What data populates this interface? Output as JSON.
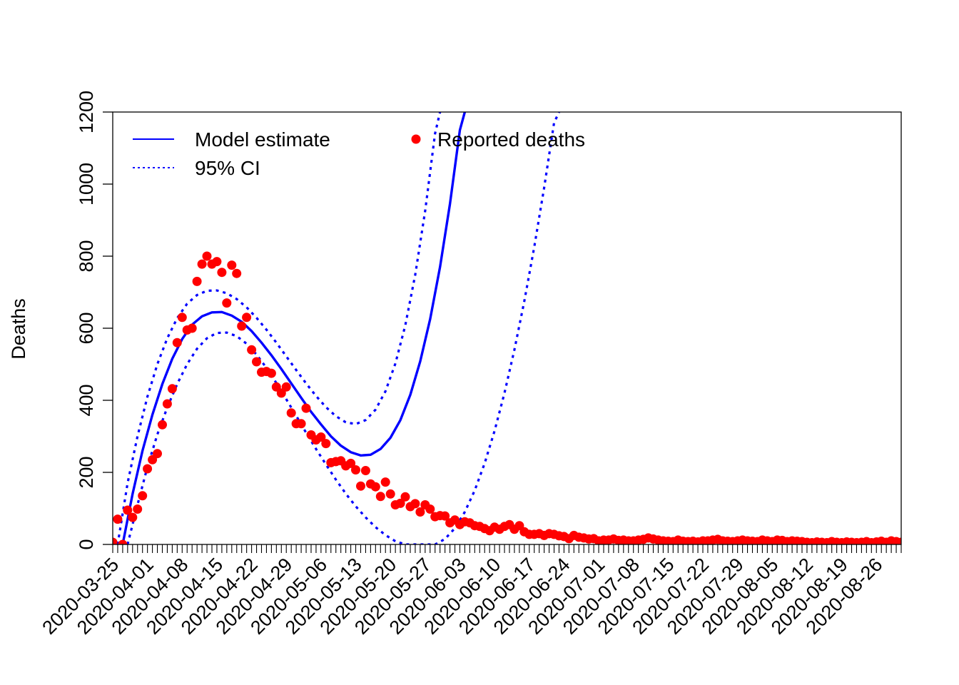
{
  "chart_data": {
    "type": "line",
    "title": "",
    "xlabel": "",
    "ylabel": "Deaths",
    "ylim": [
      0,
      1200
    ],
    "y_ticks": [
      0,
      200,
      400,
      600,
      800,
      1000,
      1200
    ],
    "x_tick_labels": [
      "2020-03-25",
      "2020-04-01",
      "2020-04-08",
      "2020-04-15",
      "2020-04-22",
      "2020-04-29",
      "2020-05-06",
      "2020-05-13",
      "2020-05-20",
      "2020-05-27",
      "2020-06-03",
      "2020-06-10",
      "2020-06-17",
      "2020-06-24",
      "2020-07-01",
      "2020-07-08",
      "2020-07-15",
      "2020-07-22",
      "2020-07-29",
      "2020-08-05",
      "2020-08-12",
      "2020-08-19",
      "2020-08-26"
    ],
    "x_range": [
      "2020-03-25",
      "2020-08-31"
    ],
    "grid": false,
    "legend": {
      "placement": "top-left",
      "entries": [
        {
          "label": "Model estimate",
          "style": "solid-line"
        },
        {
          "label": "95% CI",
          "style": "dotted-line"
        },
        {
          "label": "Reported deaths",
          "style": "point"
        }
      ]
    },
    "colors": {
      "model": "#0000ff",
      "points": "#ff0000"
    },
    "series": [
      {
        "name": "Reported deaths",
        "kind": "scatter",
        "x_start": "2020-03-25",
        "values": [
          6,
          70,
          0,
          95,
          75,
          98,
          135,
          210,
          235,
          252,
          332,
          390,
          432,
          560,
          630,
          595,
          600,
          730,
          778,
          800,
          778,
          785,
          755,
          670,
          775,
          752,
          606,
          630,
          540,
          507,
          478,
          480,
          475,
          437,
          420,
          437,
          365,
          335,
          335,
          378,
          304,
          290,
          298,
          280,
          227,
          230,
          232,
          218,
          225,
          207,
          162,
          205,
          168,
          160,
          133,
          173,
          140,
          110,
          114,
          132,
          105,
          113,
          90,
          110,
          98,
          77,
          80,
          79,
          60,
          68,
          55,
          63,
          60,
          52,
          50,
          44,
          38,
          48,
          42,
          50,
          55,
          42,
          52,
          35,
          28,
          28,
          30,
          25,
          30,
          28,
          24,
          22,
          16,
          25,
          20,
          18,
          15,
          16,
          10,
          12,
          12,
          15,
          11,
          12,
          10,
          10,
          12,
          14,
          18,
          15,
          12,
          10,
          9,
          8,
          12,
          9,
          8,
          9,
          7,
          10,
          10,
          12,
          14,
          10,
          9,
          8,
          10,
          12,
          10,
          9,
          8,
          12,
          10,
          8,
          12,
          11,
          8,
          10,
          9,
          8,
          6,
          5,
          7,
          6,
          5,
          8,
          6,
          5,
          7,
          6,
          5,
          6,
          8,
          5,
          7,
          9,
          6,
          10,
          8,
          6,
          5,
          7,
          6,
          5,
          4,
          6,
          5,
          8,
          7
        ]
      },
      {
        "name": "Model estimate",
        "kind": "line",
        "points": [
          {
            "x": "2020-03-27",
            "y": 0
          },
          {
            "x": "2020-03-29",
            "y": 140
          },
          {
            "x": "2020-03-31",
            "y": 260
          },
          {
            "x": "2020-04-02",
            "y": 360
          },
          {
            "x": "2020-04-04",
            "y": 445
          },
          {
            "x": "2020-04-06",
            "y": 515
          },
          {
            "x": "2020-04-08",
            "y": 570
          },
          {
            "x": "2020-04-10",
            "y": 610
          },
          {
            "x": "2020-04-12",
            "y": 633
          },
          {
            "x": "2020-04-14",
            "y": 644
          },
          {
            "x": "2020-04-16",
            "y": 645
          },
          {
            "x": "2020-04-18",
            "y": 635
          },
          {
            "x": "2020-04-20",
            "y": 618
          },
          {
            "x": "2020-04-22",
            "y": 592
          },
          {
            "x": "2020-04-24",
            "y": 560
          },
          {
            "x": "2020-04-26",
            "y": 525
          },
          {
            "x": "2020-04-28",
            "y": 487
          },
          {
            "x": "2020-04-30",
            "y": 447
          },
          {
            "x": "2020-05-02",
            "y": 407
          },
          {
            "x": "2020-05-04",
            "y": 368
          },
          {
            "x": "2020-05-06",
            "y": 333
          },
          {
            "x": "2020-05-08",
            "y": 300
          },
          {
            "x": "2020-05-10",
            "y": 274
          },
          {
            "x": "2020-05-12",
            "y": 256
          },
          {
            "x": "2020-05-14",
            "y": 247
          },
          {
            "x": "2020-05-16",
            "y": 249
          },
          {
            "x": "2020-05-18",
            "y": 265
          },
          {
            "x": "2020-05-20",
            "y": 296
          },
          {
            "x": "2020-05-22",
            "y": 345
          },
          {
            "x": "2020-05-24",
            "y": 415
          },
          {
            "x": "2020-05-26",
            "y": 508
          },
          {
            "x": "2020-05-28",
            "y": 625
          },
          {
            "x": "2020-05-30",
            "y": 770
          },
          {
            "x": "2020-06-01",
            "y": 945
          },
          {
            "x": "2020-06-03",
            "y": 1150
          },
          {
            "x": "2020-06-04",
            "y": 1200
          }
        ]
      },
      {
        "name": "95% CI",
        "kind": "line",
        "bound": "upper",
        "points": [
          {
            "x": "2020-03-26",
            "y": 0
          },
          {
            "x": "2020-03-28",
            "y": 170
          },
          {
            "x": "2020-03-30",
            "y": 300
          },
          {
            "x": "2020-04-01",
            "y": 410
          },
          {
            "x": "2020-04-03",
            "y": 500
          },
          {
            "x": "2020-04-05",
            "y": 572
          },
          {
            "x": "2020-04-07",
            "y": 628
          },
          {
            "x": "2020-04-09",
            "y": 668
          },
          {
            "x": "2020-04-11",
            "y": 692
          },
          {
            "x": "2020-04-13",
            "y": 704
          },
          {
            "x": "2020-04-15",
            "y": 705
          },
          {
            "x": "2020-04-17",
            "y": 697
          },
          {
            "x": "2020-04-19",
            "y": 681
          },
          {
            "x": "2020-04-21",
            "y": 658
          },
          {
            "x": "2020-04-23",
            "y": 629
          },
          {
            "x": "2020-04-25",
            "y": 596
          },
          {
            "x": "2020-04-27",
            "y": 560
          },
          {
            "x": "2020-04-29",
            "y": 522
          },
          {
            "x": "2020-05-01",
            "y": 484
          },
          {
            "x": "2020-05-03",
            "y": 447
          },
          {
            "x": "2020-05-05",
            "y": 412
          },
          {
            "x": "2020-05-07",
            "y": 381
          },
          {
            "x": "2020-05-09",
            "y": 356
          },
          {
            "x": "2020-05-11",
            "y": 339
          },
          {
            "x": "2020-05-13",
            "y": 334
          },
          {
            "x": "2020-05-15",
            "y": 345
          },
          {
            "x": "2020-05-17",
            "y": 374
          },
          {
            "x": "2020-05-19",
            "y": 425
          },
          {
            "x": "2020-05-21",
            "y": 502
          },
          {
            "x": "2020-05-23",
            "y": 608
          },
          {
            "x": "2020-05-25",
            "y": 748
          },
          {
            "x": "2020-05-27",
            "y": 925
          },
          {
            "x": "2020-05-29",
            "y": 1140
          },
          {
            "x": "2020-05-30",
            "y": 1200
          }
        ]
      },
      {
        "name": "95% CI",
        "kind": "line",
        "bound": "lower",
        "points": [
          {
            "x": "2020-03-28",
            "y": 0
          },
          {
            "x": "2020-03-30",
            "y": 110
          },
          {
            "x": "2020-04-01",
            "y": 215
          },
          {
            "x": "2020-04-03",
            "y": 305
          },
          {
            "x": "2020-04-05",
            "y": 380
          },
          {
            "x": "2020-04-07",
            "y": 445
          },
          {
            "x": "2020-04-09",
            "y": 500
          },
          {
            "x": "2020-04-11",
            "y": 543
          },
          {
            "x": "2020-04-13",
            "y": 572
          },
          {
            "x": "2020-04-15",
            "y": 587
          },
          {
            "x": "2020-04-17",
            "y": 588
          },
          {
            "x": "2020-04-19",
            "y": 578
          },
          {
            "x": "2020-04-21",
            "y": 557
          },
          {
            "x": "2020-04-23",
            "y": 527
          },
          {
            "x": "2020-04-25",
            "y": 490
          },
          {
            "x": "2020-04-27",
            "y": 448
          },
          {
            "x": "2020-04-29",
            "y": 403
          },
          {
            "x": "2020-05-01",
            "y": 357
          },
          {
            "x": "2020-05-03",
            "y": 310
          },
          {
            "x": "2020-05-05",
            "y": 265
          },
          {
            "x": "2020-05-07",
            "y": 222
          },
          {
            "x": "2020-05-09",
            "y": 180
          },
          {
            "x": "2020-05-11",
            "y": 141
          },
          {
            "x": "2020-05-13",
            "y": 106
          },
          {
            "x": "2020-05-15",
            "y": 75
          },
          {
            "x": "2020-05-17",
            "y": 48
          },
          {
            "x": "2020-05-19",
            "y": 26
          },
          {
            "x": "2020-05-21",
            "y": 9
          },
          {
            "x": "2020-05-23",
            "y": 0
          },
          {
            "x": "2020-05-29",
            "y": 0
          },
          {
            "x": "2020-05-31",
            "y": 15
          },
          {
            "x": "2020-06-02",
            "y": 45
          },
          {
            "x": "2020-06-04",
            "y": 90
          },
          {
            "x": "2020-06-06",
            "y": 150
          },
          {
            "x": "2020-06-08",
            "y": 225
          },
          {
            "x": "2020-06-10",
            "y": 315
          },
          {
            "x": "2020-06-12",
            "y": 420
          },
          {
            "x": "2020-06-14",
            "y": 540
          },
          {
            "x": "2020-06-16",
            "y": 675
          },
          {
            "x": "2020-06-18",
            "y": 825
          },
          {
            "x": "2020-06-20",
            "y": 990
          },
          {
            "x": "2020-06-22",
            "y": 1170
          },
          {
            "x": "2020-06-23",
            "y": 1200
          }
        ]
      }
    ]
  }
}
